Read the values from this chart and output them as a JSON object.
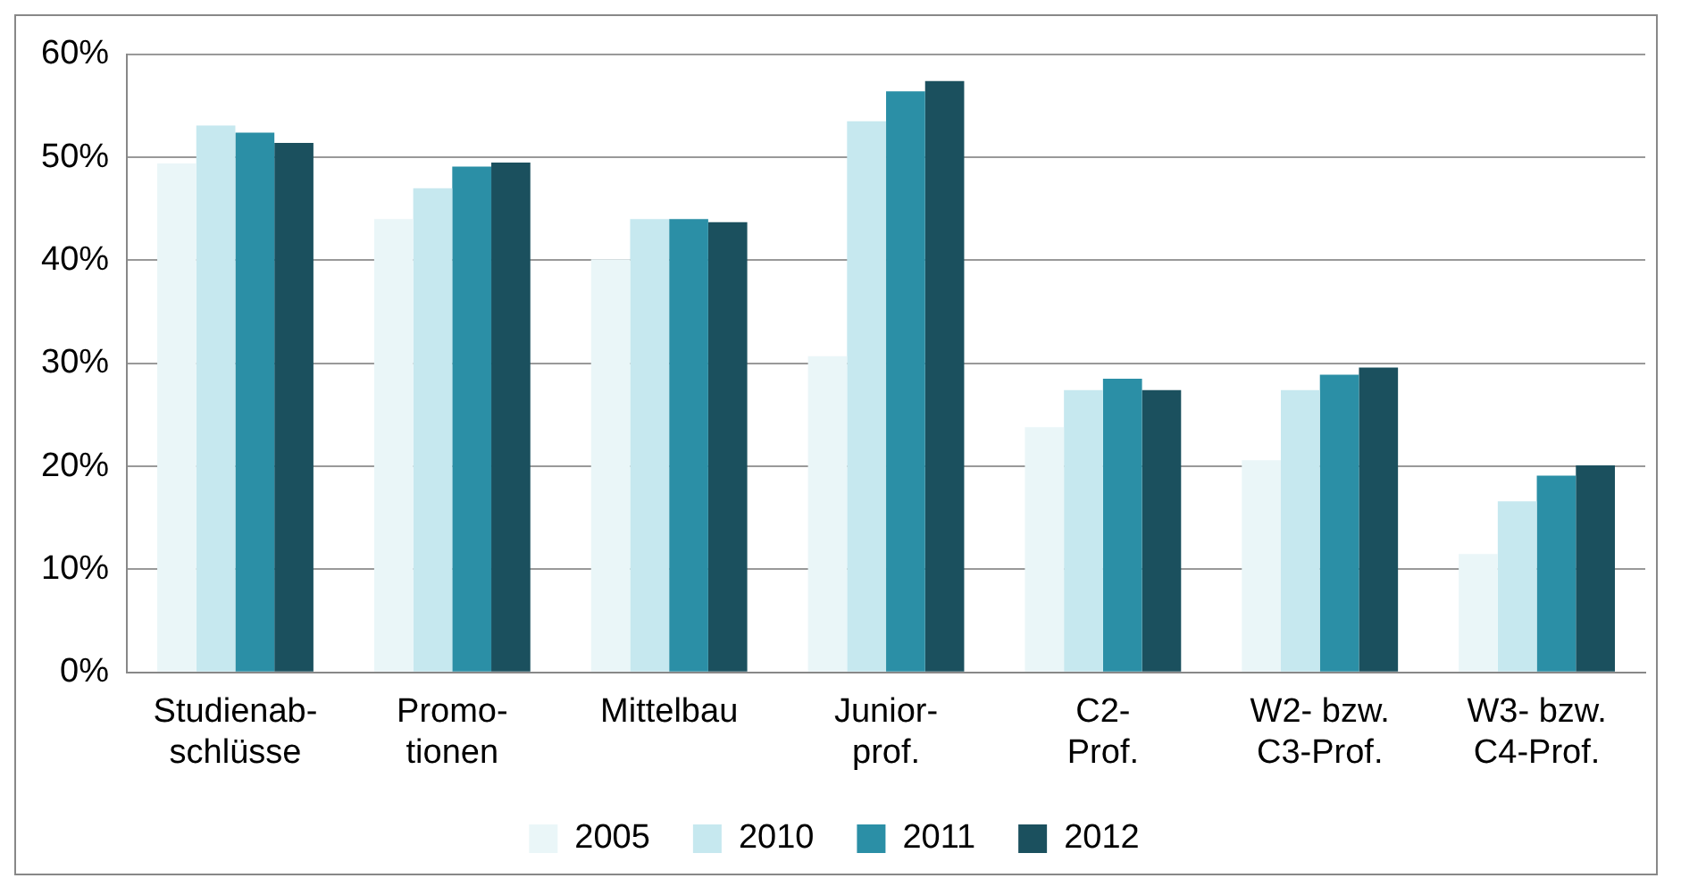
{
  "chart_data": {
    "type": "bar",
    "categories": [
      "Studienab-\nschlüsse",
      "Promo-\ntionen",
      "Mittelbau",
      "Junior-\nprof.",
      "C2-\nProf.",
      "W2- bzw.\nC3-Prof.",
      "W3- bzw.\nC4-Prof."
    ],
    "series": [
      {
        "name": "2005",
        "color": "#eaf6f8",
        "values": [
          49.4,
          44.0,
          40.1,
          30.7,
          23.8,
          20.6,
          11.5
        ]
      },
      {
        "name": "2010",
        "color": "#c6e8ef",
        "values": [
          53.1,
          47.0,
          44.0,
          53.5,
          27.4,
          27.4,
          16.6
        ]
      },
      {
        "name": "2011",
        "color": "#2b8fa6",
        "values": [
          52.4,
          49.1,
          44.0,
          56.4,
          28.5,
          28.9,
          19.1
        ]
      },
      {
        "name": "2012",
        "color": "#1b505e",
        "values": [
          51.4,
          49.5,
          43.7,
          57.4,
          27.4,
          29.6,
          20.1
        ]
      }
    ],
    "ylim": [
      0,
      60
    ],
    "yticks": [
      {
        "value": 0,
        "label": "0%"
      },
      {
        "value": 10,
        "label": "10%"
      },
      {
        "value": 20,
        "label": "20%"
      },
      {
        "value": 30,
        "label": "30%"
      },
      {
        "value": 40,
        "label": "40%"
      },
      {
        "value": 50,
        "label": "50%"
      },
      {
        "value": 60,
        "label": "60%"
      }
    ],
    "grid": "y",
    "legend": "bottom"
  }
}
